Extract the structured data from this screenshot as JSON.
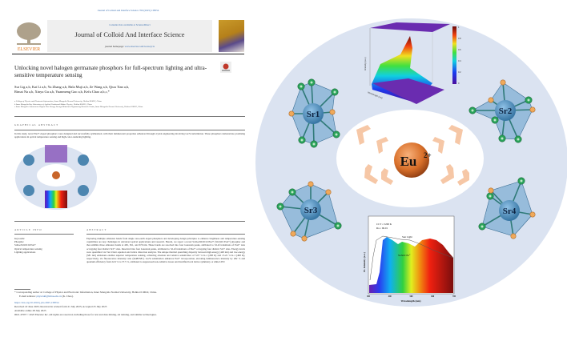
{
  "paper": {
    "journal_line": "Journal of Colloid and Interface Science 700 (2025) 138554",
    "publisher": "ELSEVIER",
    "contents_prefix": "Contents lists available at ",
    "contents_link": "ScienceDirect",
    "journal_title": "Journal of Colloid And Interface Science",
    "homepage_prefix": "journal homepage: ",
    "homepage_link": "www.elsevier.com/locate/jcis",
    "title": "Unlocking novel halogen germanate phosphors for full-spectrum lighting and ultra-sensitive temperature sensing",
    "authors_line1": "Sur Lig a,b, Kai Li a,b, Yu Zhang a,b, Hala Muji a,b, Ze Wang a,b, Qiuu Tian a,b,",
    "authors_line2": "Rimai Na a,b, Xinyu Gu a,b, Yuanmeng Gao a,b, Kefu Chao a,b,c,*",
    "affiliations": [
      "a College of Physics and Electronic Information, Inner Mongolia Normal University, Hohhot 010022, China",
      "b Inner Mongolia Key Laboratory of Applied Condensed Matter Physics, Hohhot 010022, China",
      "c Inner Mongolia Autonomous Region New Energy Storage Materials Engineering Research Center, Inner Mongolia Normal University, Hohhot 010022, China"
    ],
    "graphical_abstract_heading": "GRAPHICAL ABSTRACT",
    "graphical_abstract_text": "In this study, novel Eu2+-doped phosphors were designed and successfully synthesized, with their luminescent properties enhanced through crystal engineering involving Ga/Si substitution. These phosphors demonstrate promising applications in optical temperature sensing and high-color-rendering lighting.",
    "article_info_heading": "ARTICLE INFO",
    "keywords": [
      "Keywords:",
      "Phosphor",
      "Sr4Ge3O10Cl2:Eu2+",
      "Optical temperature sensing",
      "Lighting applications"
    ],
    "abstract_heading": "ABSTRACT",
    "abstract_text": "Exploring multiple emission bands from single rare-earth doped phosphors and developing design principles to enhance brightness and temperature-sensing capabilities are key challenges in advanced optical applications and research. Herein, we report a novel Sr4Ge3O10Cl2:Eu2+ (SGSOC:Eu2+) phosphor and that exhibits three emission bands at 465, 561, and 670 nm. These bands are resolved into four Gaussian peaks, attributed to 5d-4f transitions of Eu2+ ions occupying four distinct Sr2+ sites. Resolved into four Gaussian peaks, attributed to 5d-4f transitions of Eu2+ occupying four distinct Sr2+ sites. Energy levels were quantified via Van Uitert equation and lattice distortion analysis. The unique thermal quenching disparity between high-energy (448 nm) and low-energy (581 nm) emissions enables superior temperature sensing, achieving absolute and relative sensitivities of 3.07 % K-1 (298 K) and 15.22 % K-1 (498 K), respectively, via fluorescence intensity ratio (I448/I581). Ga/Si substitution enhances Eu2+ incorporation, elevating luminescence intensity by 282 % and quantum efficiency from 22.6 % to 57.5 %, attributed to suppressed non-radiative losses and modified local lattice symmetry. A white LED",
    "corresponding": "* Corresponding author at: College of Physics and Electronic Information, Inner Mongolia Normal University, Hohhot 010022, China.",
    "email_prefix": "E-mail address: ",
    "email": "physcnkf@imnu.edu.cn",
    "email_suffix": " (K. Chao).",
    "doi": "https://doi.org/10.1016/j.jcis.2025.138554",
    "received": "Received 22 June 2025; Received in revised form 21 July 2025; Accepted 25 July 2025",
    "available": "Available online 28 July 2025",
    "copyright": "0021-9797/© 2025 Elsevier Inc. All rights are reserved, including those for text and data mining, AI training, and similar technologies."
  },
  "graphic": {
    "center_label": "Eu",
    "center_sup": "2+",
    "sites": [
      "Sr1",
      "Sr2",
      "Sr3",
      "Sr4"
    ],
    "thermal_plot": {
      "ylabel": "Intensity (a.u.)",
      "xlabel": "Wavelength (nm)",
      "colorbar_ticks": [
        "1",
        "0.8",
        "0.6",
        "0.4",
        "0.2",
        "0"
      ]
    },
    "spectrum": {
      "cct": "CCT = 5200 K",
      "ra": "Ra = 96.01",
      "sun_label": "Sun Light",
      "sample_label": "SGSOC:Eu",
      "sample_sup": "2+",
      "ylabel": "EL Intensity (a.u.)",
      "xlabel": "Wavelength (nm)",
      "xticks": [
        "300",
        "400",
        "500",
        "600",
        "700"
      ]
    },
    "colors": {
      "outer_ring": "#dbe3f1",
      "arrow": "#f6c7a6",
      "sphere": "#d9702a",
      "green_atom": "#2aa35a",
      "orange_atom": "#f0a95a",
      "polyhedron": "#5f9cc8"
    }
  }
}
